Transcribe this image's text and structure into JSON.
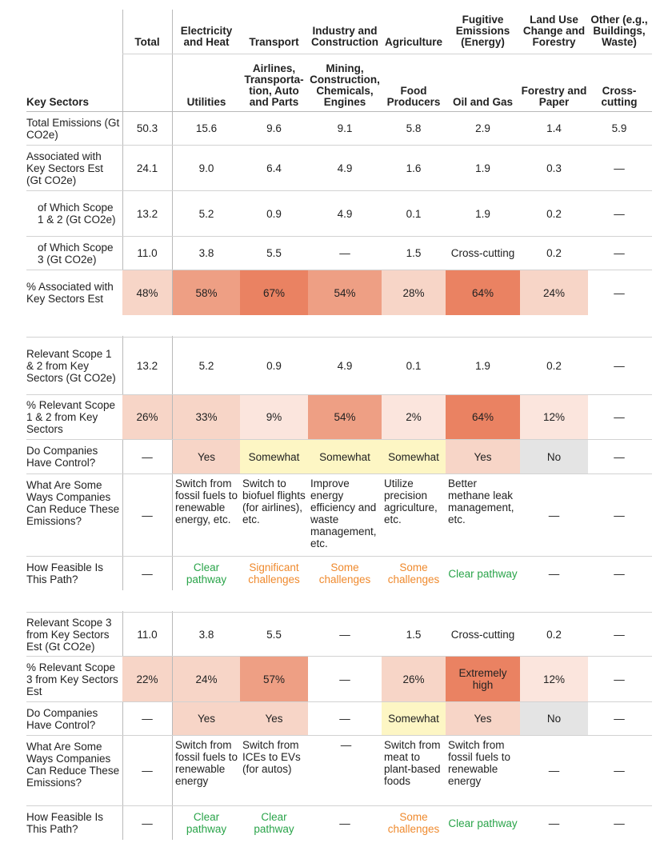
{
  "header": {
    "row_label": "Key Sectors",
    "columns": [
      {
        "sector": "Total",
        "sub": ""
      },
      {
        "sector": "Electricity and Heat",
        "sub": "Utilities"
      },
      {
        "sector": "Transport",
        "sub": "Airlines, Transporta-tion, Auto and Parts"
      },
      {
        "sector": "Industry and Construction",
        "sub": "Mining, Construction, Chemicals, Engines"
      },
      {
        "sector": "Agriculture",
        "sub": "Food Producers"
      },
      {
        "sector": "Fugitive Emissions (Energy)",
        "sub": "Oil and Gas"
      },
      {
        "sector": "Land Use Change and Forestry",
        "sub": "Forestry and Paper"
      },
      {
        "sector": "Other (e.g., Buildings, Waste)",
        "sub": "Cross-cutting"
      }
    ]
  },
  "section1": {
    "total_emissions": {
      "label": "Total Emissions (Gt CO2e)",
      "values": [
        "50.3",
        "15.6",
        "9.6",
        "9.1",
        "5.8",
        "2.9",
        "1.4",
        "5.9"
      ]
    },
    "associated": {
      "label": "Associated with Key Sectors Est (Gt CO2e)",
      "values": [
        "24.1",
        "9.0",
        "6.4",
        "4.9",
        "1.6",
        "1.9",
        "0.3",
        "—"
      ]
    },
    "scope12": {
      "label": "of Which Scope 1 & 2 (Gt CO2e)",
      "values": [
        "13.2",
        "5.2",
        "0.9",
        "4.9",
        "0.1",
        "1.9",
        "0.2",
        "—"
      ]
    },
    "scope3": {
      "label": "of Which Scope 3 (Gt CO2e)",
      "values": [
        "11.0",
        "3.8",
        "5.5",
        "—",
        "1.5",
        "Cross-cutting",
        "0.2",
        "—"
      ]
    },
    "pct_associated": {
      "label": "% Associated with Key Sectors Est",
      "values": [
        "48%",
        "58%",
        "67%",
        "54%",
        "28%",
        "64%",
        "24%",
        "—"
      ]
    }
  },
  "section2": {
    "relevant": {
      "label": "Relevant Scope 1 & 2 from Key Sectors (Gt CO2e)",
      "values": [
        "13.2",
        "5.2",
        "0.9",
        "4.9",
        "0.1",
        "1.9",
        "0.2",
        "—"
      ]
    },
    "pct_relevant": {
      "label": "% Relevant Scope 1 & 2 from Key Sectors",
      "values": [
        "26%",
        "33%",
        "9%",
        "54%",
        "2%",
        "64%",
        "12%",
        "—"
      ]
    },
    "control": {
      "label": "Do Companies Have Control?",
      "values": [
        "—",
        "Yes",
        "Somewhat",
        "Somewhat",
        "Somewhat",
        "Yes",
        "No",
        "—"
      ]
    },
    "ways": {
      "label": "What Are Some Ways Companies Can Reduce These Emissions?",
      "values": [
        "—",
        "Switch from fossil fuels to renewable energy, etc.",
        "Switch to biofuel flights (for airlines), etc.",
        "Improve energy efficiency and waste management, etc.",
        "Utilize precision agriculture, etc.",
        "Better methane leak management, etc.",
        "—",
        "—"
      ]
    },
    "feasible": {
      "label": "How Feasible Is This Path?",
      "values": [
        "—",
        "Clear pathway",
        "Significant challenges",
        "Some challenges",
        "Some challenges",
        "Clear pathway",
        "—",
        "—"
      ]
    }
  },
  "section3": {
    "relevant": {
      "label": "Relevant Scope 3 from Key Sectors Est (Gt CO2e)",
      "values": [
        "11.0",
        "3.8",
        "5.5",
        "—",
        "1.5",
        "Cross-cutting",
        "0.2",
        "—"
      ]
    },
    "pct_relevant": {
      "label": "% Relevant Scope 3 from Key Sectors Est",
      "values": [
        "22%",
        "24%",
        "57%",
        "—",
        "26%",
        "Extremely high",
        "12%",
        "—"
      ]
    },
    "control": {
      "label": "Do Companies Have Control?",
      "values": [
        "—",
        "Yes",
        "Yes",
        "—",
        "Somewhat",
        "Yes",
        "No",
        "—"
      ]
    },
    "ways": {
      "label": "What Are Some Ways Companies Can Reduce These Emissions?",
      "values": [
        "—",
        "Switch from fossil fuels to renewable energy",
        "Switch from ICEs to EVs (for autos)",
        "—",
        "Switch from meat to plant-based foods",
        "Switch from fossil fuels to renewable energy",
        "—",
        "—"
      ]
    },
    "feasible": {
      "label": "How Feasible Is This Path?",
      "values": [
        "—",
        "Clear pathway",
        "Clear pathway",
        "—",
        "Some challenges",
        "Clear pathway",
        "—",
        "—"
      ]
    }
  },
  "colors": {
    "green": "#2aa44a",
    "orange": "#ef8a2e",
    "yellow": "#fdf6c4",
    "grey": "#e4e4e4",
    "heat_low": "#f7d5c7",
    "heat_high": "#ea8262"
  }
}
